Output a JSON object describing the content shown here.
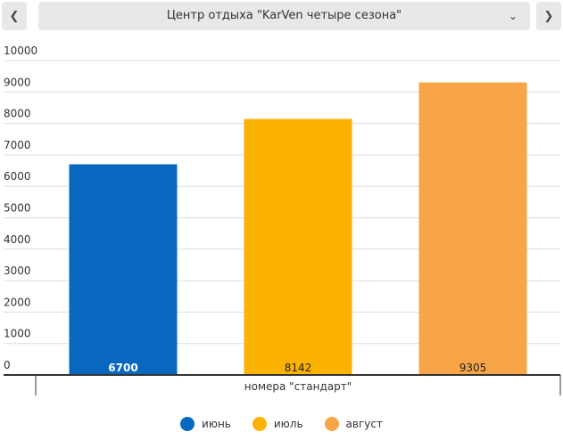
{
  "header": {
    "title": "Центр отдыха \"KarVen четыре сезона\"",
    "prev_icon": "chevron-left-icon",
    "next_icon": "chevron-right-icon",
    "dropdown_icon": "chevron-down-icon"
  },
  "chart_data": {
    "type": "bar",
    "categories": [
      "номера \"стандарт\""
    ],
    "series": [
      {
        "name": "июнь",
        "values": [
          6700
        ],
        "color": "#0868c1",
        "label_color": "#ffffff"
      },
      {
        "name": "июль",
        "values": [
          8142
        ],
        "color": "#fcb200",
        "label_color": "#222222"
      },
      {
        "name": "август",
        "values": [
          9305
        ],
        "color": "#f8a548",
        "label_color": "#222222"
      }
    ],
    "ylim": [
      0,
      10000
    ],
    "yticks": [
      0,
      1000,
      2000,
      3000,
      4000,
      5000,
      6000,
      7000,
      8000,
      9000,
      10000
    ],
    "grid": true,
    "legend_position": "bottom-center",
    "title": "",
    "xlabel": "",
    "ylabel": ""
  }
}
